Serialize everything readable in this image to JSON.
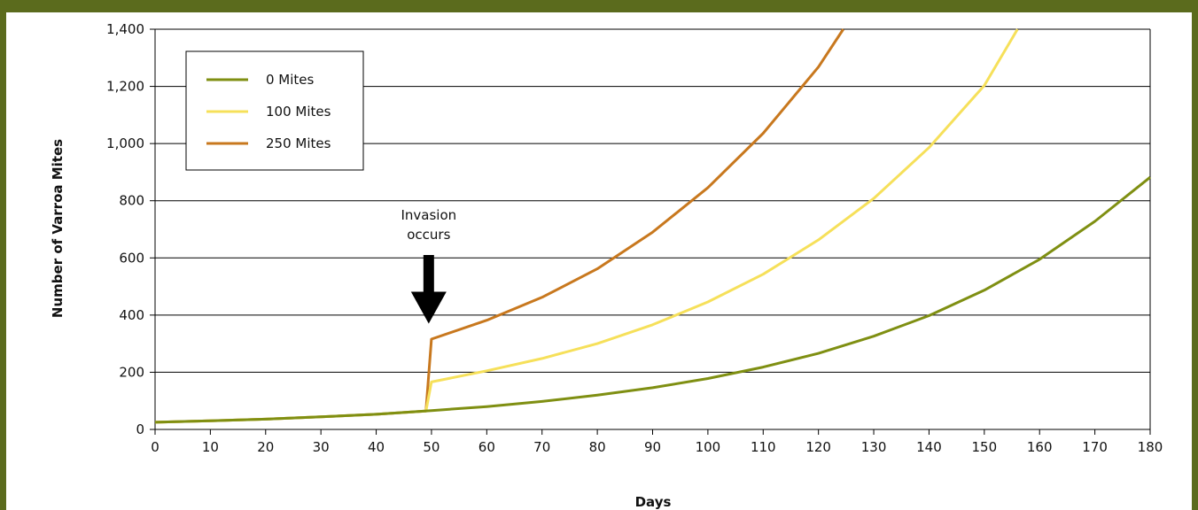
{
  "chart_data": {
    "type": "line",
    "title": "",
    "xlabel": "Days",
    "ylabel": "Number of Varroa Mites",
    "xlim": [
      0,
      180
    ],
    "ylim": [
      0,
      1400
    ],
    "x_ticks": [
      0,
      10,
      20,
      30,
      40,
      50,
      60,
      70,
      80,
      90,
      100,
      110,
      120,
      130,
      140,
      150,
      160,
      170,
      180
    ],
    "y_ticks": [
      0,
      200,
      400,
      600,
      800,
      1000,
      1200,
      1400
    ],
    "y_tick_labels": [
      "0",
      "200",
      "400",
      "600",
      "800",
      "1,000",
      "1,200",
      "1,400"
    ],
    "grid": "horizontal",
    "legend_position": "top-left",
    "series": [
      {
        "name": "0 Mites",
        "color": "#7f8f12",
        "points": [
          [
            0,
            25
          ],
          [
            10,
            30
          ],
          [
            20,
            36
          ],
          [
            30,
            44
          ],
          [
            40,
            53
          ],
          [
            50,
            66
          ],
          [
            60,
            80
          ],
          [
            70,
            98
          ],
          [
            80,
            120
          ],
          [
            90,
            146
          ],
          [
            100,
            178
          ],
          [
            110,
            218
          ],
          [
            120,
            266
          ],
          [
            130,
            326
          ],
          [
            140,
            398
          ],
          [
            150,
            487
          ],
          [
            160,
            595
          ],
          [
            170,
            728
          ],
          [
            180,
            882
          ]
        ]
      },
      {
        "name": "100 Mites",
        "color": "#f6e05a",
        "points": [
          [
            0,
            25
          ],
          [
            10,
            30
          ],
          [
            20,
            36
          ],
          [
            30,
            44
          ],
          [
            40,
            53
          ],
          [
            49,
            64
          ],
          [
            50,
            166
          ],
          [
            60,
            205
          ],
          [
            70,
            248
          ],
          [
            80,
            300
          ],
          [
            90,
            366
          ],
          [
            100,
            446
          ],
          [
            110,
            543
          ],
          [
            120,
            663
          ],
          [
            130,
            808
          ],
          [
            140,
            986
          ],
          [
            150,
            1203
          ],
          [
            156,
            1400
          ]
        ]
      },
      {
        "name": "250 Mites",
        "color": "#c8781e",
        "points": [
          [
            0,
            25
          ],
          [
            10,
            30
          ],
          [
            20,
            36
          ],
          [
            30,
            44
          ],
          [
            40,
            53
          ],
          [
            49,
            64
          ],
          [
            50,
            316
          ],
          [
            60,
            382
          ],
          [
            70,
            462
          ],
          [
            80,
            562
          ],
          [
            90,
            690
          ],
          [
            100,
            846
          ],
          [
            110,
            1036
          ],
          [
            120,
            1268
          ],
          [
            124.5,
            1400
          ]
        ]
      }
    ],
    "annotations": [
      {
        "lines": [
          "Invasion",
          "occurs"
        ],
        "x": 49.5,
        "arrow_to_y": 370
      }
    ]
  }
}
